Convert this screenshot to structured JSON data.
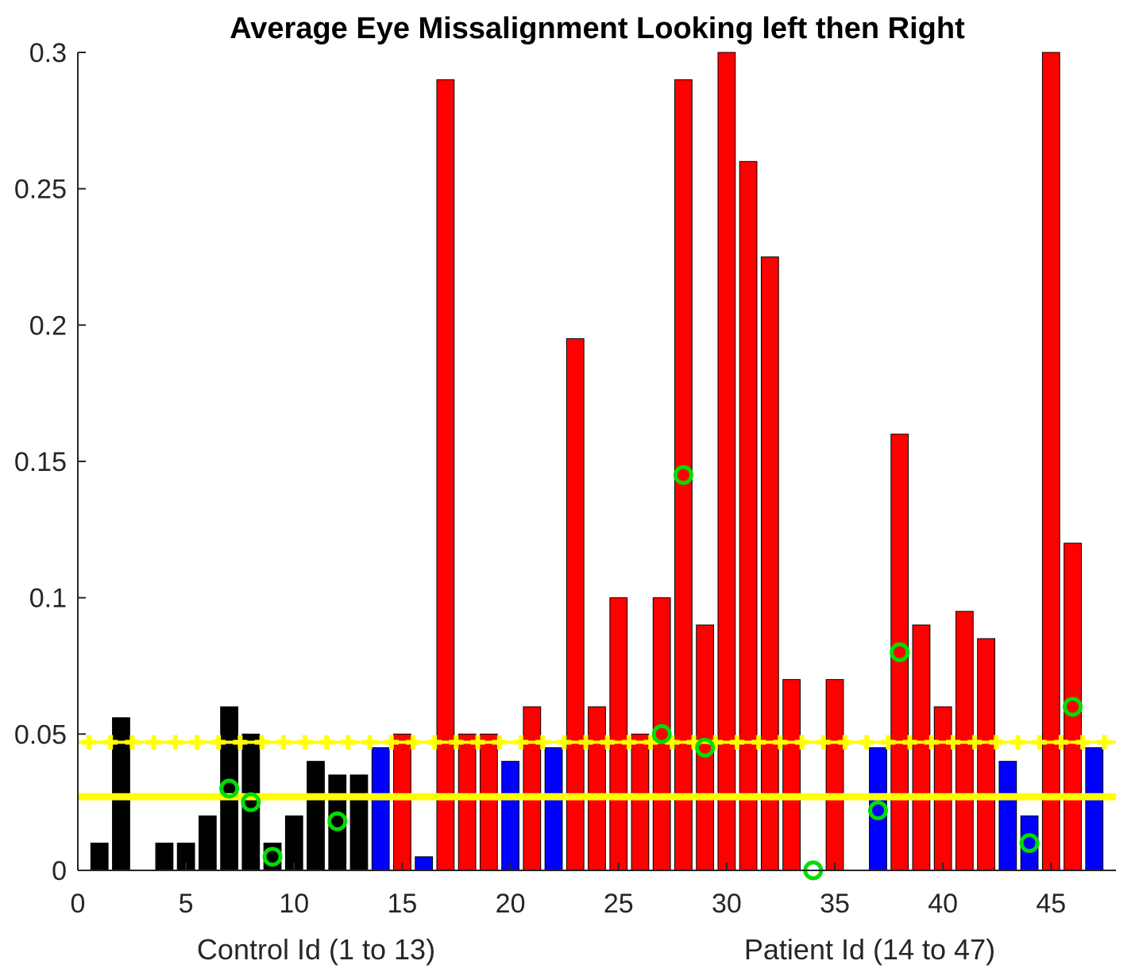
{
  "chart_data": {
    "type": "bar",
    "title": "Average Eye Missalignment Looking left then Right",
    "xlabel_left": "Control Id (1 to 13)",
    "xlabel_right": "Patient Id (14 to 47)",
    "ylabel": "",
    "xlim": [
      0,
      48
    ],
    "ylim": [
      0,
      0.3
    ],
    "xticks": [
      0,
      5,
      10,
      15,
      20,
      25,
      30,
      35,
      40,
      45
    ],
    "yticks": [
      0,
      0.05,
      0.1,
      0.15,
      0.2,
      0.25,
      0.3
    ],
    "ytick_labels": [
      "0",
      "0.05",
      "0.1",
      "0.15",
      "0.2",
      "0.25",
      "0.3"
    ],
    "grid": false,
    "colors": {
      "control": "#000000",
      "patient_below": "#0000ff",
      "patient_above": "#ff0000",
      "reference_lines": "#ffff00",
      "markers": "#00dd00"
    },
    "bars": [
      {
        "id": 1,
        "value": 0.01,
        "group": "control"
      },
      {
        "id": 2,
        "value": 0.056,
        "group": "control"
      },
      {
        "id": 3,
        "value": 0.0,
        "group": "control"
      },
      {
        "id": 4,
        "value": 0.01,
        "group": "control"
      },
      {
        "id": 5,
        "value": 0.01,
        "group": "control"
      },
      {
        "id": 6,
        "value": 0.02,
        "group": "control"
      },
      {
        "id": 7,
        "value": 0.06,
        "group": "control"
      },
      {
        "id": 8,
        "value": 0.05,
        "group": "control"
      },
      {
        "id": 9,
        "value": 0.01,
        "group": "control"
      },
      {
        "id": 10,
        "value": 0.02,
        "group": "control"
      },
      {
        "id": 11,
        "value": 0.04,
        "group": "control"
      },
      {
        "id": 12,
        "value": 0.035,
        "group": "control"
      },
      {
        "id": 13,
        "value": 0.035,
        "group": "control"
      },
      {
        "id": 14,
        "value": 0.045,
        "group": "patient_below"
      },
      {
        "id": 15,
        "value": 0.05,
        "group": "patient_above"
      },
      {
        "id": 16,
        "value": 0.005,
        "group": "patient_below"
      },
      {
        "id": 17,
        "value": 0.29,
        "group": "patient_above"
      },
      {
        "id": 18,
        "value": 0.05,
        "group": "patient_above"
      },
      {
        "id": 19,
        "value": 0.05,
        "group": "patient_above"
      },
      {
        "id": 20,
        "value": 0.04,
        "group": "patient_below"
      },
      {
        "id": 21,
        "value": 0.06,
        "group": "patient_above"
      },
      {
        "id": 22,
        "value": 0.045,
        "group": "patient_below"
      },
      {
        "id": 23,
        "value": 0.195,
        "group": "patient_above"
      },
      {
        "id": 24,
        "value": 0.06,
        "group": "patient_above"
      },
      {
        "id": 25,
        "value": 0.1,
        "group": "patient_above"
      },
      {
        "id": 26,
        "value": 0.05,
        "group": "patient_above"
      },
      {
        "id": 27,
        "value": 0.1,
        "group": "patient_above"
      },
      {
        "id": 28,
        "value": 0.29,
        "group": "patient_above"
      },
      {
        "id": 29,
        "value": 0.09,
        "group": "patient_above"
      },
      {
        "id": 30,
        "value": 0.3,
        "group": "patient_above"
      },
      {
        "id": 31,
        "value": 0.26,
        "group": "patient_above"
      },
      {
        "id": 32,
        "value": 0.225,
        "group": "patient_above"
      },
      {
        "id": 33,
        "value": 0.07,
        "group": "patient_above"
      },
      {
        "id": 34,
        "value": 0.0,
        "group": "patient_below"
      },
      {
        "id": 35,
        "value": 0.07,
        "group": "patient_above"
      },
      {
        "id": 36,
        "value": 0.0,
        "group": "patient_below"
      },
      {
        "id": 37,
        "value": 0.045,
        "group": "patient_below"
      },
      {
        "id": 38,
        "value": 0.16,
        "group": "patient_above"
      },
      {
        "id": 39,
        "value": 0.09,
        "group": "patient_above"
      },
      {
        "id": 40,
        "value": 0.06,
        "group": "patient_above"
      },
      {
        "id": 41,
        "value": 0.095,
        "group": "patient_above"
      },
      {
        "id": 42,
        "value": 0.085,
        "group": "patient_above"
      },
      {
        "id": 43,
        "value": 0.04,
        "group": "patient_below"
      },
      {
        "id": 44,
        "value": 0.02,
        "group": "patient_below"
      },
      {
        "id": 45,
        "value": 0.3,
        "group": "patient_above"
      },
      {
        "id": 46,
        "value": 0.12,
        "group": "patient_above"
      },
      {
        "id": 47,
        "value": 0.045,
        "group": "patient_below"
      }
    ],
    "markers": [
      {
        "x": 7,
        "y": 0.03
      },
      {
        "x": 8,
        "y": 0.025
      },
      {
        "x": 9,
        "y": 0.005
      },
      {
        "x": 12,
        "y": 0.018
      },
      {
        "x": 27,
        "y": 0.05
      },
      {
        "x": 28,
        "y": 0.145
      },
      {
        "x": 29,
        "y": 0.045
      },
      {
        "x": 34,
        "y": 0.0
      },
      {
        "x": 37,
        "y": 0.022
      },
      {
        "x": 38,
        "y": 0.08
      },
      {
        "x": 44,
        "y": 0.01
      },
      {
        "x": 46,
        "y": 0.06
      }
    ],
    "reference_lines": [
      {
        "style": "dotted-plus",
        "y": 0.047
      },
      {
        "style": "solid",
        "y": 0.027
      }
    ]
  }
}
